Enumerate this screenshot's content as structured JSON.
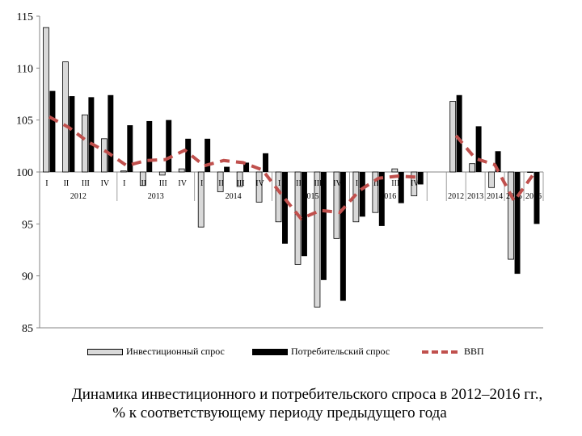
{
  "chart_data": {
    "type": "bar",
    "y_ticks": [
      "115",
      "110",
      "105",
      "100",
      "95",
      "90",
      "85"
    ],
    "ylim": [
      85,
      115
    ],
    "baseline": 100,
    "quarter_labels": [
      "I",
      "II",
      "III",
      "IV",
      "I",
      "II",
      "III",
      "IV",
      "I",
      "II",
      "III",
      "IV",
      "I",
      "II",
      "III",
      "IV",
      "I",
      "II",
      "III",
      "IV"
    ],
    "year_labels": [
      "2012",
      "2013",
      "2014",
      "2015",
      "2016"
    ],
    "annual_labels": [
      "2012",
      "2013",
      "2014",
      "2015",
      "2016"
    ],
    "series": [
      {
        "name": "Инвестиционный спрос",
        "quarterly": [
          113.9,
          110.6,
          105.5,
          103.2,
          100.1,
          98.7,
          99.7,
          100.3,
          94.7,
          98.1,
          98.6,
          97.1,
          95.2,
          91.1,
          87.0,
          93.6,
          95.2,
          96.1,
          100.3,
          97.7
        ],
        "annual": [
          106.8,
          100.8,
          98.5,
          91.6,
          100.0
        ]
      },
      {
        "name": "Потребительский спрос",
        "quarterly": [
          107.8,
          107.3,
          107.2,
          107.4,
          104.5,
          104.9,
          105.0,
          103.2,
          103.2,
          100.5,
          100.9,
          101.8,
          93.1,
          91.9,
          89.6,
          87.6,
          95.7,
          94.8,
          97.0,
          98.8
        ],
        "annual": [
          107.4,
          104.4,
          102.0,
          90.2,
          95.0
        ]
      },
      {
        "name": "ВВП",
        "quarterly": [
          105.3,
          104.3,
          102.9,
          101.9,
          100.6,
          101.1,
          101.2,
          102.1,
          100.6,
          101.1,
          100.9,
          100.2,
          97.8,
          95.5,
          96.3,
          96.1,
          98.2,
          99.4,
          99.6,
          99.5
        ],
        "annual": [
          103.5,
          101.3,
          100.7,
          97.2,
          99.8
        ]
      }
    ],
    "legend_position": "bottom",
    "grid": false
  },
  "legend": {
    "inv": "Инвестиционный спрос",
    "cons": "Потребительский спрос",
    "gdp": "ВВП"
  },
  "caption": {
    "line1": "Динамика инвестиционного и потребительского спроса в 2012–2016 гг.,",
    "line2": "% к соответствующему периоду предыдущего года"
  },
  "colors": {
    "investment": "#d9d9d9",
    "consumer": "#000000",
    "gdp": "#c0504d",
    "axis": "#868686"
  }
}
